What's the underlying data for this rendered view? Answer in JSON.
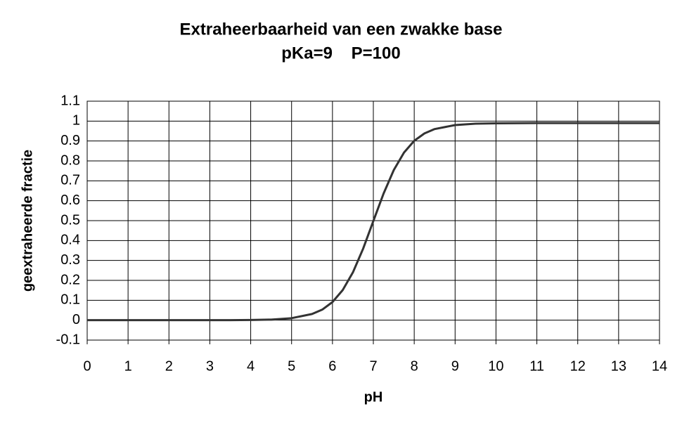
{
  "chart_data": {
    "type": "line",
    "title": "Extraheerbaarheid van een zwakke base",
    "subtitle": "pKa=9    P=100",
    "x_label": "pH",
    "y_label": "geextraheerde fractie",
    "x": [
      0,
      1,
      2,
      3,
      3.5,
      4,
      4.5,
      5,
      5.5,
      5.75,
      6,
      6.25,
      6.5,
      6.75,
      7,
      7.25,
      7.5,
      7.75,
      8,
      8.25,
      8.5,
      9,
      9.5,
      10,
      11,
      12,
      13,
      14
    ],
    "series": [
      {
        "name": "geextraheerde fractie",
        "color": "#333333",
        "values": [
          0,
          0,
          0,
          0,
          0,
          0.001,
          0.003,
          0.01,
          0.031,
          0.053,
          0.091,
          0.151,
          0.24,
          0.359,
          0.498,
          0.636,
          0.754,
          0.842,
          0.901,
          0.938,
          0.96,
          0.98,
          0.987,
          0.989,
          0.99,
          0.99,
          0.99,
          0.99
        ]
      }
    ],
    "xlim": [
      0,
      14
    ],
    "xticks": [
      0,
      1,
      2,
      3,
      4,
      5,
      6,
      7,
      8,
      9,
      10,
      11,
      12,
      13,
      14
    ],
    "ylim": [
      -0.1,
      1.1
    ],
    "yticks": [
      -0.1,
      0,
      0.1,
      0.2,
      0.3,
      0.4,
      0.5,
      0.6,
      0.7,
      0.8,
      0.9,
      1,
      1.1
    ],
    "grid": true
  }
}
